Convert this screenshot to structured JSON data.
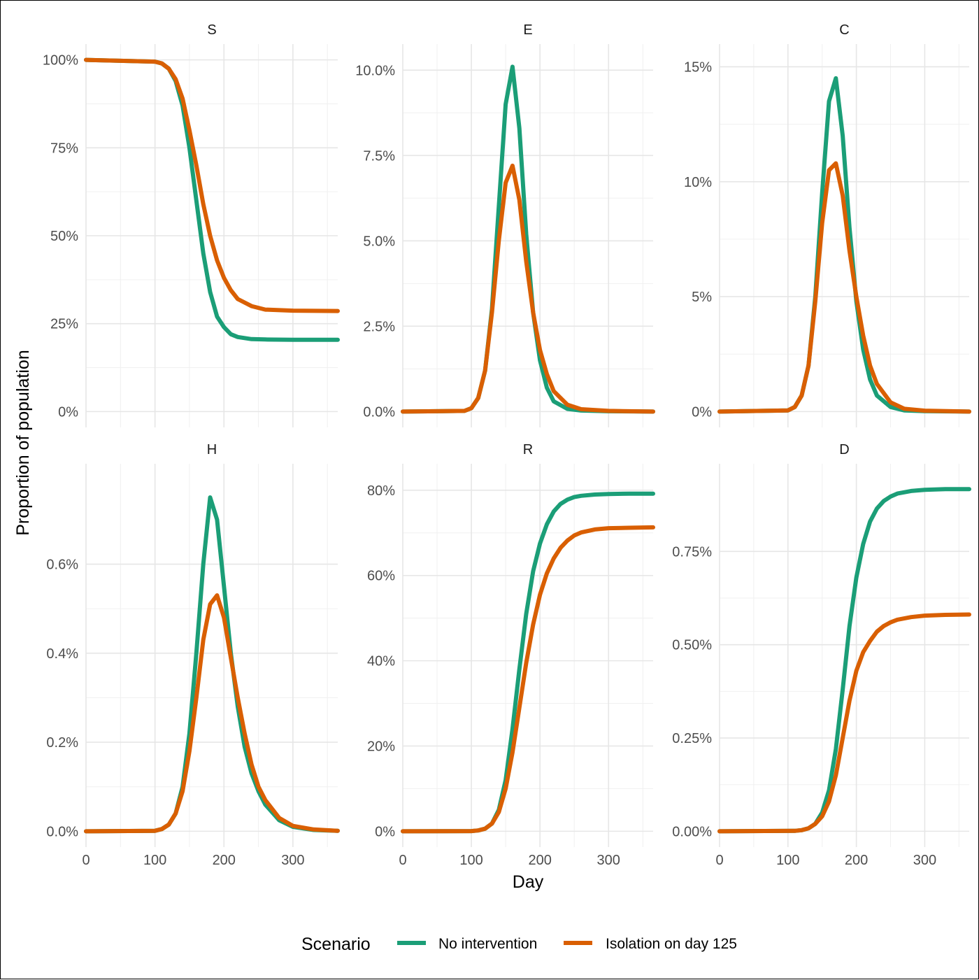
{
  "chart_data": {
    "type": "line",
    "xlabel": "Day",
    "ylabel": "Proportion of population",
    "legend": {
      "title": "Scenario",
      "position": "bottom",
      "entries": [
        "No intervention",
        "Isolation on day 125"
      ]
    },
    "colors": {
      "No intervention": "#1b9e77",
      "Isolation on day 125": "#d95f02"
    },
    "grid": true,
    "xlim": [
      0,
      365
    ],
    "x_ticks": [
      0,
      100,
      200,
      300
    ],
    "panels": [
      {
        "title": "S",
        "ylim": [
          0,
          100
        ],
        "y_ticks": [
          0,
          25,
          50,
          75,
          100
        ],
        "y_tick_labels": [
          "0%",
          "25%",
          "50%",
          "75%",
          "100%"
        ],
        "series": [
          {
            "name": "No intervention",
            "x": [
              0,
              100,
              110,
              120,
              130,
              140,
              150,
              160,
              170,
              180,
              190,
              200,
              210,
              220,
              240,
              260,
              300,
              365
            ],
            "y": [
              100,
              99.5,
              99,
              97.5,
              94,
              87,
              75,
              60,
              45,
              34,
              27,
              24,
              22,
              21.2,
              20.6,
              20.5,
              20.4,
              20.4
            ]
          },
          {
            "name": "Isolation on day 125",
            "x": [
              0,
              100,
              110,
              120,
              130,
              140,
              150,
              160,
              170,
              180,
              190,
              200,
              210,
              220,
              240,
              260,
              300,
              365
            ],
            "y": [
              100,
              99.5,
              99,
              97.5,
              94.5,
              89,
              80,
              70,
              59,
              50,
              43,
              38,
              34.5,
              32,
              30,
              29,
              28.7,
              28.6
            ]
          }
        ]
      },
      {
        "title": "E",
        "ylim": [
          0,
          10.3
        ],
        "y_ticks": [
          0,
          2.5,
          5,
          7.5,
          10
        ],
        "y_tick_labels": [
          "0.0%",
          "2.5%",
          "5.0%",
          "7.5%",
          "10.0%"
        ],
        "series": [
          {
            "name": "No intervention",
            "x": [
              0,
              90,
              100,
              110,
              120,
              130,
              140,
              150,
              160,
              170,
              180,
              190,
              200,
              210,
              220,
              240,
              260,
              300,
              365
            ],
            "y": [
              0,
              0.02,
              0.1,
              0.4,
              1.2,
              3.0,
              6.0,
              9.0,
              10.1,
              8.3,
              5.2,
              2.9,
              1.5,
              0.7,
              0.3,
              0.08,
              0.03,
              0.01,
              0
            ]
          },
          {
            "name": "Isolation on day 125",
            "x": [
              0,
              90,
              100,
              110,
              120,
              130,
              140,
              150,
              160,
              170,
              180,
              190,
              200,
              210,
              220,
              240,
              260,
              300,
              365
            ],
            "y": [
              0,
              0.02,
              0.1,
              0.4,
              1.2,
              2.9,
              5.0,
              6.7,
              7.2,
              6.2,
              4.4,
              2.9,
              1.8,
              1.1,
              0.6,
              0.2,
              0.07,
              0.02,
              0
            ]
          }
        ]
      },
      {
        "title": "C",
        "ylim": [
          0,
          15.3
        ],
        "y_ticks": [
          0,
          5,
          10,
          15
        ],
        "y_tick_labels": [
          "0%",
          "5%",
          "10%",
          "15%"
        ],
        "series": [
          {
            "name": "No intervention",
            "x": [
              0,
              100,
              110,
              120,
              130,
              140,
              150,
              160,
              170,
              180,
              190,
              200,
              210,
              220,
              230,
              250,
              270,
              300,
              365
            ],
            "y": [
              0,
              0.05,
              0.2,
              0.7,
              2.0,
              5.0,
              9.5,
              13.5,
              14.5,
              12.0,
              8.0,
              4.8,
              2.7,
              1.4,
              0.7,
              0.2,
              0.05,
              0.02,
              0
            ]
          },
          {
            "name": "Isolation on day 125",
            "x": [
              0,
              100,
              110,
              120,
              130,
              140,
              150,
              160,
              170,
              180,
              190,
              200,
              210,
              220,
              230,
              250,
              270,
              300,
              365
            ],
            "y": [
              0,
              0.05,
              0.2,
              0.7,
              2.0,
              4.8,
              8.2,
              10.5,
              10.8,
              9.4,
              7.0,
              5.0,
              3.3,
              2.0,
              1.2,
              0.4,
              0.12,
              0.04,
              0
            ]
          }
        ]
      },
      {
        "title": "H",
        "ylim": [
          0,
          0.79
        ],
        "y_ticks": [
          0,
          0.2,
          0.4,
          0.6
        ],
        "y_tick_labels": [
          "0.0%",
          "0.2%",
          "0.4%",
          "0.6%"
        ],
        "series": [
          {
            "name": "No intervention",
            "x": [
              0,
              100,
              110,
              120,
              130,
              140,
              150,
              160,
              170,
              180,
              190,
              200,
              210,
              220,
              230,
              240,
              250,
              260,
              280,
              300,
              330,
              365
            ],
            "y": [
              0,
              0.001,
              0.005,
              0.015,
              0.04,
              0.1,
              0.22,
              0.4,
              0.6,
              0.75,
              0.7,
              0.55,
              0.4,
              0.28,
              0.19,
              0.13,
              0.09,
              0.06,
              0.025,
              0.01,
              0.003,
              0.001
            ]
          },
          {
            "name": "Isolation on day 125",
            "x": [
              0,
              100,
              110,
              120,
              130,
              140,
              150,
              160,
              170,
              180,
              190,
              200,
              210,
              220,
              230,
              240,
              250,
              260,
              280,
              300,
              330,
              365
            ],
            "y": [
              0,
              0.001,
              0.005,
              0.015,
              0.04,
              0.09,
              0.18,
              0.3,
              0.43,
              0.51,
              0.53,
              0.48,
              0.39,
              0.3,
              0.22,
              0.15,
              0.1,
              0.07,
              0.03,
              0.012,
              0.004,
              0.001
            ]
          }
        ]
      },
      {
        "title": "R",
        "ylim": [
          0,
          82.5
        ],
        "y_ticks": [
          0,
          20,
          40,
          60,
          80
        ],
        "y_tick_labels": [
          "0%",
          "20%",
          "40%",
          "60%",
          "80%"
        ],
        "series": [
          {
            "name": "No intervention",
            "x": [
              0,
              100,
              110,
              120,
              130,
              140,
              150,
              160,
              170,
              180,
              190,
              200,
              210,
              220,
              230,
              240,
              250,
              260,
              280,
              300,
              330,
              365
            ],
            "y": [
              0,
              0.05,
              0.2,
              0.6,
              1.8,
              5.0,
              12.0,
              24.0,
              38.0,
              51.0,
              61.0,
              67.5,
              72.0,
              75.0,
              76.8,
              77.8,
              78.4,
              78.7,
              79.0,
              79.1,
              79.2,
              79.2
            ]
          },
          {
            "name": "Isolation on day 125",
            "x": [
              0,
              100,
              110,
              120,
              130,
              140,
              150,
              160,
              170,
              180,
              190,
              200,
              210,
              220,
              230,
              240,
              250,
              260,
              280,
              300,
              330,
              365
            ],
            "y": [
              0,
              0.05,
              0.2,
              0.6,
              1.8,
              4.5,
              10.0,
              18.5,
              29.0,
              39.5,
              48.5,
              55.5,
              60.5,
              64.0,
              66.5,
              68.2,
              69.4,
              70.1,
              70.8,
              71.1,
              71.2,
              71.3
            ]
          }
        ]
      },
      {
        "title": "D",
        "ylim": [
          0,
          0.9425
        ],
        "y_ticks": [
          0,
          0.25,
          0.5,
          0.75
        ],
        "y_tick_labels": [
          "0.00%",
          "0.25%",
          "0.50%",
          "0.75%"
        ],
        "series": [
          {
            "name": "No intervention",
            "x": [
              0,
              110,
              120,
              130,
              140,
              150,
              160,
              170,
              180,
              190,
              200,
              210,
              220,
              230,
              240,
              250,
              260,
              280,
              300,
              330,
              365
            ],
            "y": [
              0,
              0.001,
              0.003,
              0.008,
              0.02,
              0.05,
              0.11,
              0.22,
              0.38,
              0.55,
              0.68,
              0.77,
              0.83,
              0.865,
              0.885,
              0.897,
              0.905,
              0.912,
              0.915,
              0.917,
              0.917
            ]
          },
          {
            "name": "Isolation on day 125",
            "x": [
              0,
              110,
              120,
              130,
              140,
              150,
              160,
              170,
              180,
              190,
              200,
              210,
              220,
              230,
              240,
              250,
              260,
              280,
              300,
              330,
              365
            ],
            "y": [
              0,
              0.001,
              0.003,
              0.008,
              0.02,
              0.04,
              0.08,
              0.15,
              0.25,
              0.35,
              0.43,
              0.48,
              0.51,
              0.535,
              0.55,
              0.56,
              0.567,
              0.574,
              0.578,
              0.58,
              0.581
            ]
          }
        ]
      }
    ]
  }
}
